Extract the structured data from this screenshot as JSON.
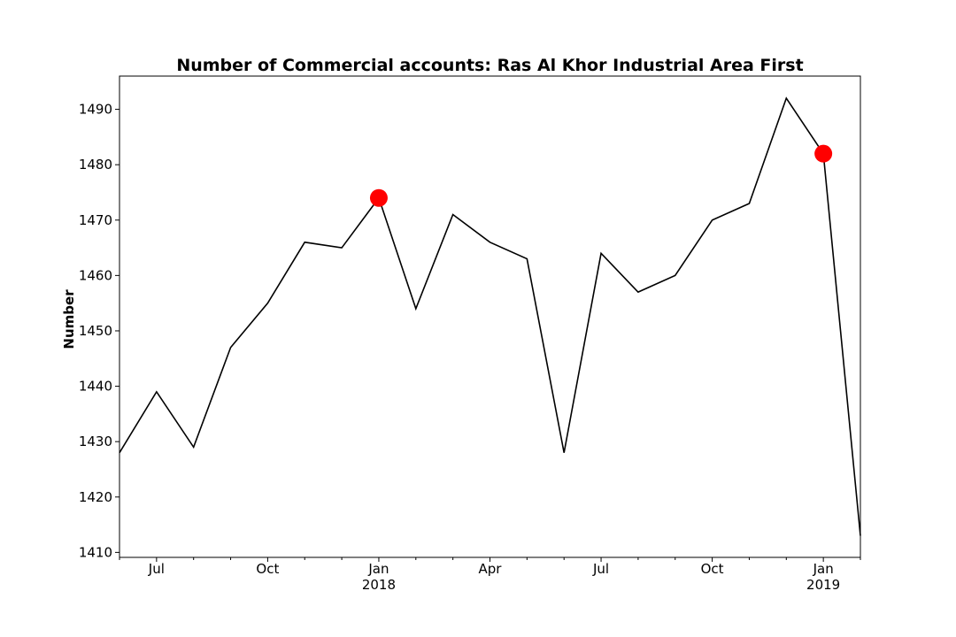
{
  "chart_data": {
    "type": "line",
    "title": "Number of Commercial accounts: Ras Al Khor Industrial Area First",
    "xlabel": "",
    "ylabel": "Number",
    "x": [
      "2017-06",
      "2017-07",
      "2017-08",
      "2017-09",
      "2017-10",
      "2017-11",
      "2017-12",
      "2018-01",
      "2018-02",
      "2018-03",
      "2018-04",
      "2018-05",
      "2018-06",
      "2018-07",
      "2018-08",
      "2018-09",
      "2018-10",
      "2018-11",
      "2018-12",
      "2019-01",
      "2019-02"
    ],
    "series": [
      {
        "name": "Number",
        "color": "#000000",
        "values": [
          1428,
          1439,
          1429,
          1447,
          1455,
          1466,
          1465,
          1474,
          1454,
          1471,
          1466,
          1463,
          1428,
          1464,
          1457,
          1460,
          1470,
          1473,
          1492,
          1482,
          1413
        ]
      }
    ],
    "highlights": [
      {
        "x": "2018-01",
        "value": 1474,
        "color": "#ff0000"
      },
      {
        "x": "2019-01",
        "value": 1482,
        "color": "#ff0000"
      }
    ],
    "xlim_index": [
      0,
      20
    ],
    "ylim": [
      1409.1,
      1496.0
    ],
    "yticks": [
      1410,
      1420,
      1430,
      1440,
      1450,
      1460,
      1470,
      1480,
      1490
    ],
    "xticks": [
      {
        "index": 1,
        "label": "Jul",
        "sublabel": ""
      },
      {
        "index": 4,
        "label": "Oct",
        "sublabel": ""
      },
      {
        "index": 7,
        "label": "Jan",
        "sublabel": "2018"
      },
      {
        "index": 10,
        "label": "Apr",
        "sublabel": ""
      },
      {
        "index": 13,
        "label": "Jul",
        "sublabel": ""
      },
      {
        "index": 16,
        "label": "Oct",
        "sublabel": ""
      },
      {
        "index": 19,
        "label": "Jan",
        "sublabel": "2019"
      }
    ],
    "minor_xticks": [
      0,
      2,
      3,
      5,
      6,
      8,
      9,
      11,
      12,
      14,
      15,
      17,
      18,
      20
    ],
    "grid": false,
    "legend": "none"
  }
}
